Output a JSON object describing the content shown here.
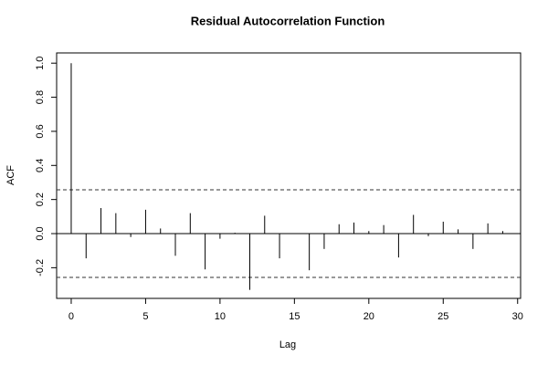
{
  "chart_data": {
    "type": "acf",
    "title": "Residual Autocorrelation Function",
    "xlabel": "Lag",
    "ylabel": "ACF",
    "x": [
      0,
      1,
      2,
      3,
      4,
      5,
      6,
      7,
      8,
      9,
      10,
      11,
      12,
      13,
      14,
      15,
      16,
      17,
      18,
      19,
      20,
      21,
      22,
      23,
      24,
      25,
      26,
      27,
      28,
      29
    ],
    "values": [
      1.0,
      -0.145,
      0.15,
      0.12,
      -0.02,
      0.14,
      0.03,
      -0.13,
      0.12,
      -0.21,
      -0.03,
      0.005,
      -0.33,
      0.105,
      -0.145,
      0.0,
      -0.215,
      -0.09,
      0.055,
      0.065,
      0.015,
      0.05,
      -0.14,
      0.11,
      -0.015,
      0.07,
      0.025,
      -0.09,
      0.06,
      0.015
    ],
    "confidence_bounds": [
      -0.257,
      0.257
    ],
    "color": "#000000",
    "bound_color": "#333333",
    "xlim": [
      -0.98,
      30.2
    ],
    "ylim": [
      -0.38,
      1.06
    ],
    "xticks": [
      0,
      5,
      10,
      15,
      20,
      25,
      30
    ],
    "yticks": [
      -0.2,
      {
        "value": 0,
        "label": "0.0"
      },
      0.2,
      0.4,
      0.6,
      0.8,
      {
        "value": 1,
        "label": "1.0"
      }
    ]
  }
}
